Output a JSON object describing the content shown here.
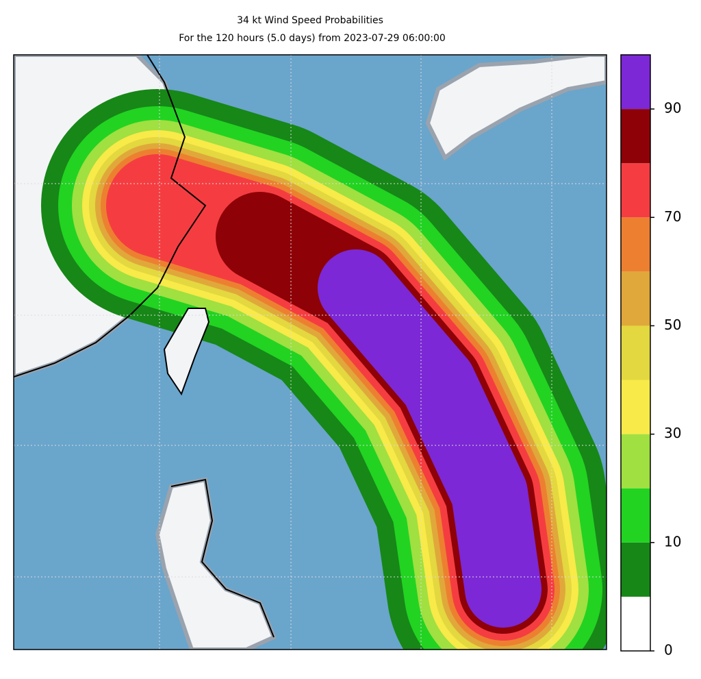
{
  "chart_data": {
    "type": "contour-map",
    "title": "34 kt Wind Speed Probabilities",
    "subtitle": "For the 120 hours (5.0 days) from 2023-07-29 06:00:00",
    "levels": [
      0,
      5,
      10,
      20,
      30,
      40,
      50,
      60,
      70,
      80,
      90,
      100
    ],
    "colors": [
      "#ffffff",
      "#178717",
      "#22d322",
      "#a0e040",
      "#f8ea48",
      "#e3d83f",
      "#e0a83a",
      "#ec8030",
      "#f53d41",
      "#8e0207",
      "#7c28d6"
    ],
    "cticks": [
      0,
      10,
      30,
      50,
      70,
      90
    ],
    "grid": true
  }
}
